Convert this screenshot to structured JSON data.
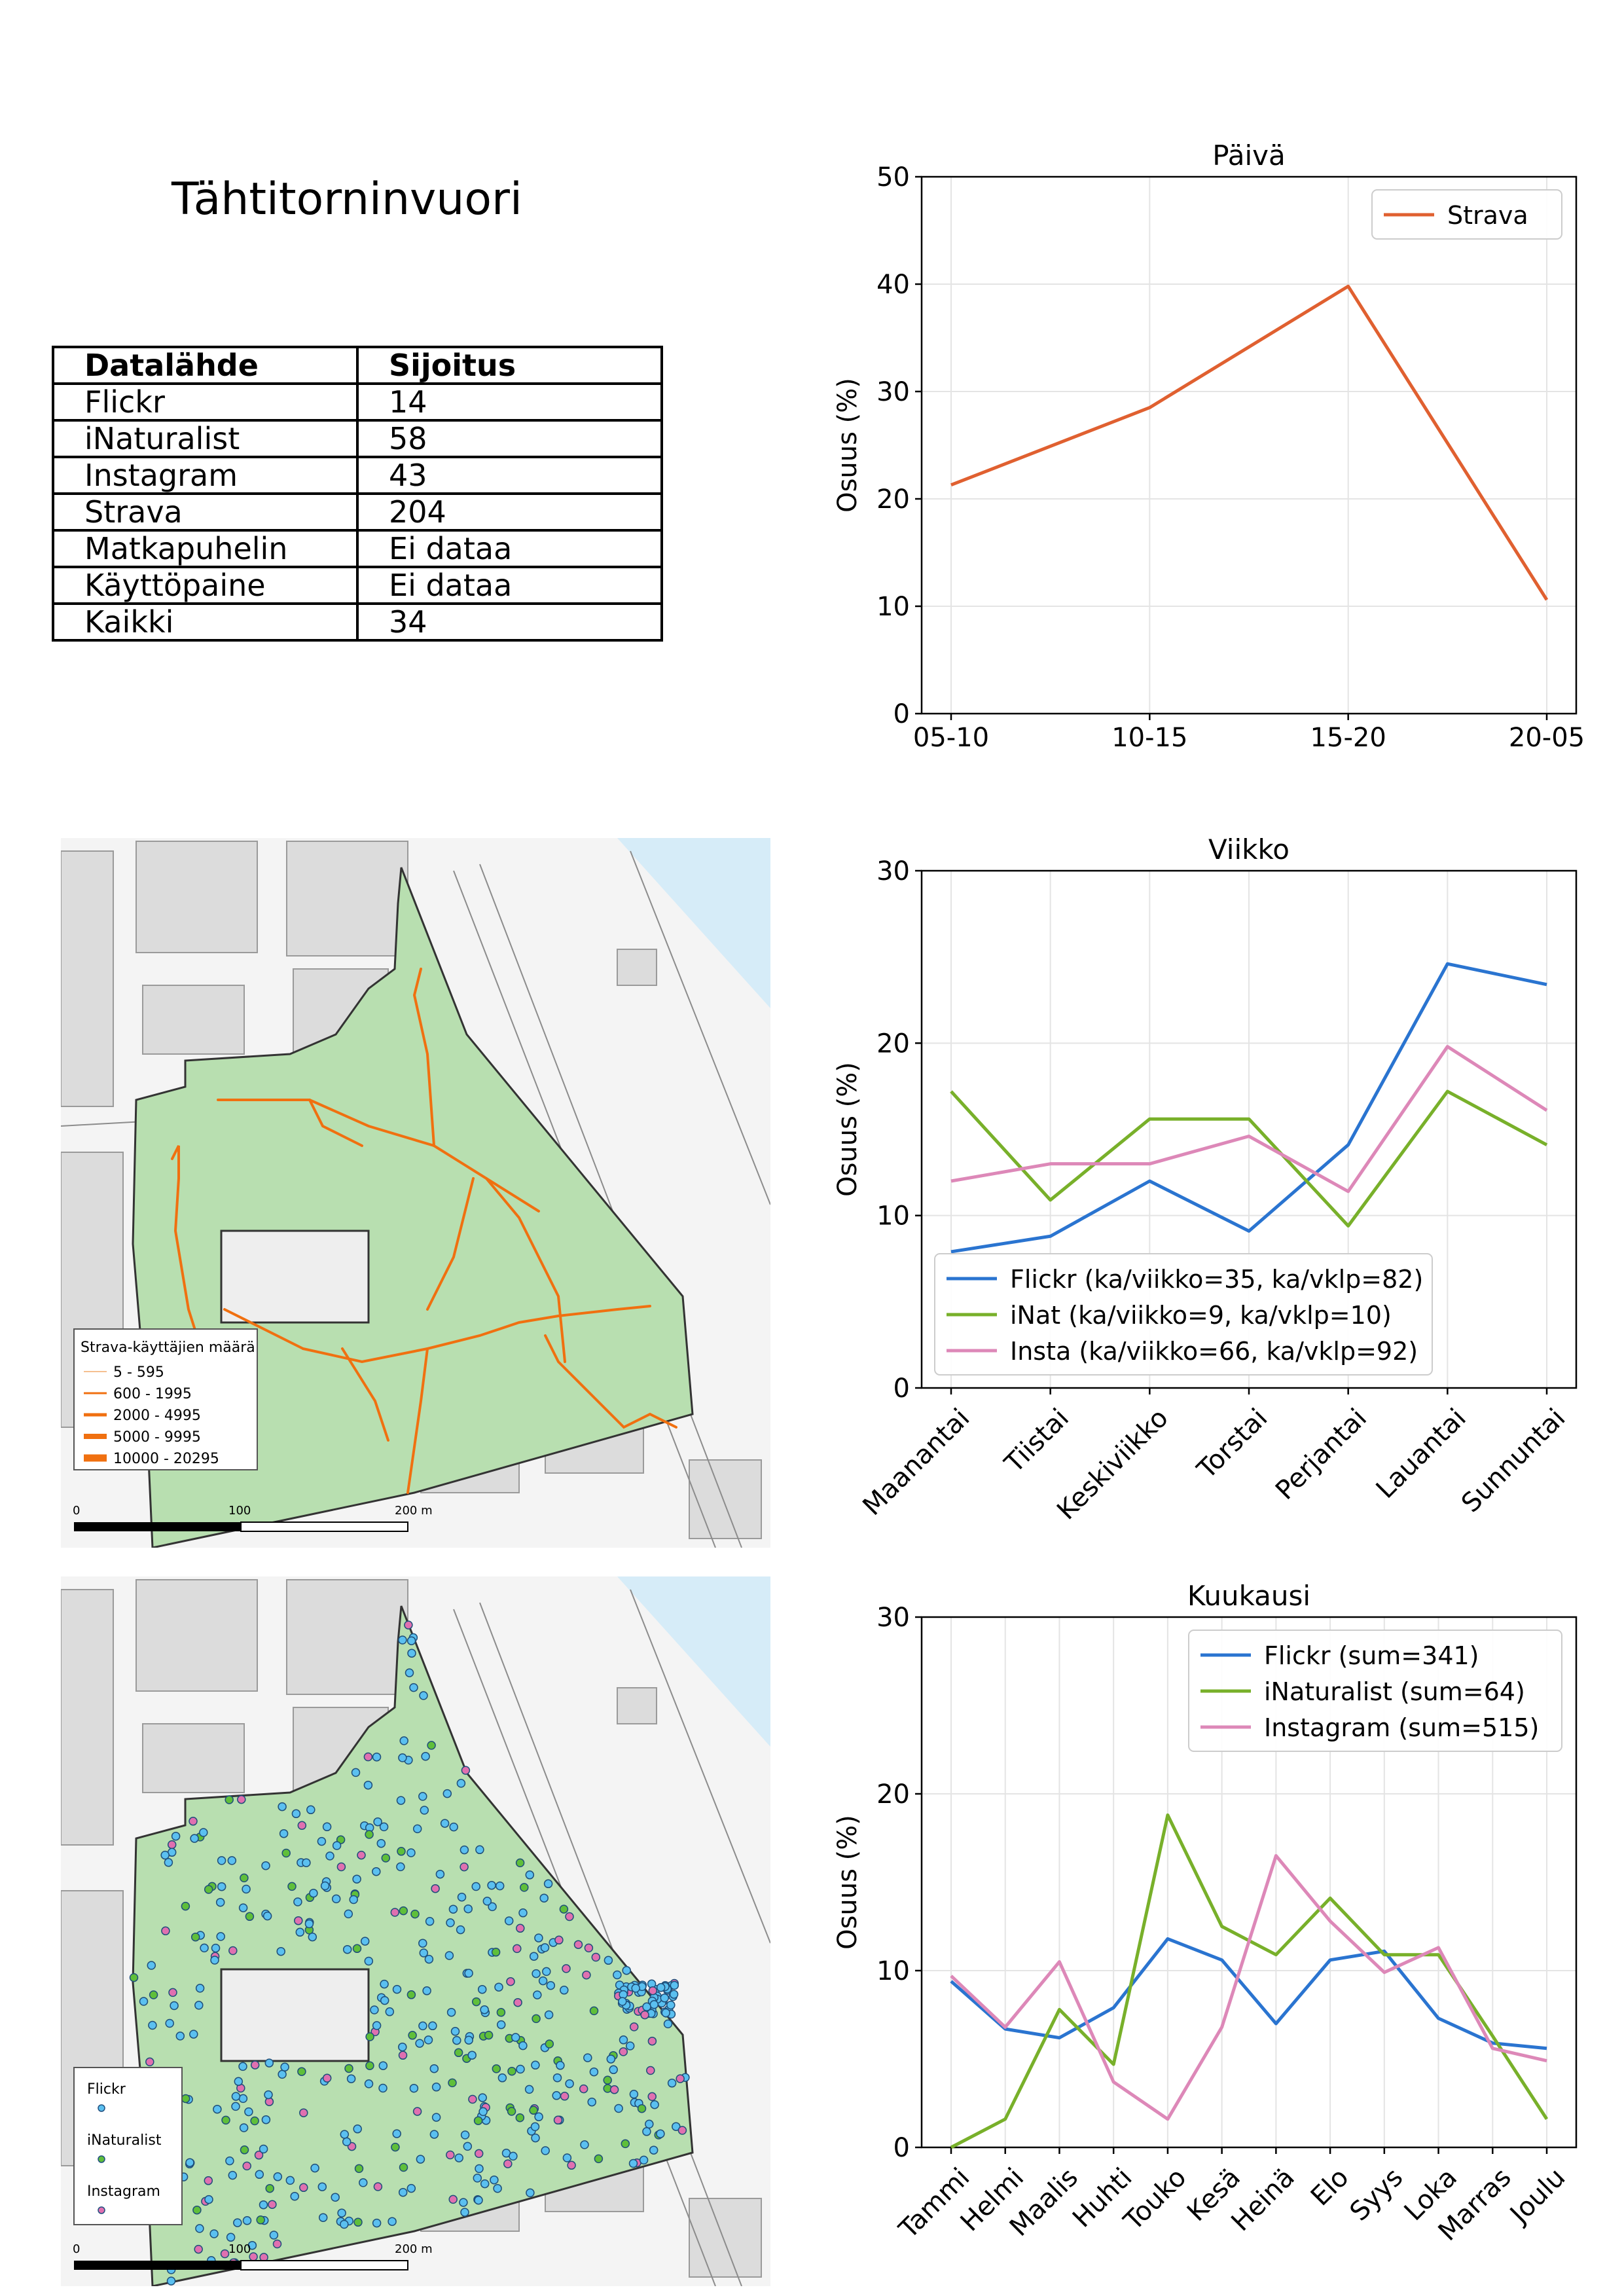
{
  "page": {
    "title": "Tähtitorninvuori"
  },
  "ranking_table": {
    "headers": [
      "Datalähde",
      "Sijoitus"
    ],
    "rows": [
      [
        "Flickr",
        "14"
      ],
      [
        "iNaturalist",
        "58"
      ],
      [
        "Instagram",
        "43"
      ],
      [
        "Strava",
        "204"
      ],
      [
        "Matkapuhelin",
        "Ei dataa"
      ],
      [
        "Käyttöpaine",
        "Ei dataa"
      ],
      [
        "Kaikki",
        "34"
      ]
    ]
  },
  "colors": {
    "strava": "#e06030",
    "flickr": "#2a74d0",
    "inat": "#78b02a",
    "insta": "#dd88b8",
    "park": "#b8dfb0",
    "water": "#d6ecf8",
    "route": "#f07010"
  },
  "chart_data": [
    {
      "id": "paiva",
      "type": "line",
      "title": "Päivä",
      "xlabel": "",
      "ylabel": "Osuus (%)",
      "categories": [
        "05-10",
        "10-15",
        "15-20",
        "20-05"
      ],
      "ylim": [
        0,
        50
      ],
      "yticks": [
        0,
        10,
        20,
        30,
        40,
        50
      ],
      "grid": true,
      "legend": "top-right",
      "series": [
        {
          "name": "Strava",
          "color": "#e06030",
          "values": [
            21.3,
            28.5,
            39.8,
            10.6
          ]
        }
      ]
    },
    {
      "id": "viikko",
      "type": "line",
      "title": "Viikko",
      "xlabel": "",
      "ylabel": "Osuus (%)",
      "categories": [
        "Maanantai",
        "Tiistai",
        "Keskiviikko",
        "Torstai",
        "Perjantai",
        "Lauantai",
        "Sunnuntai"
      ],
      "ylim": [
        0,
        30
      ],
      "yticks": [
        0,
        10,
        20,
        30
      ],
      "grid": true,
      "legend": "lower-left",
      "series": [
        {
          "name": "Flickr (ka/viikko=35, ka/vklp=82)",
          "color": "#2a74d0",
          "values": [
            7.9,
            8.8,
            12.0,
            9.1,
            14.1,
            24.6,
            23.4
          ]
        },
        {
          "name": "iNat (ka/viikko=9, ka/vklp=10)",
          "color": "#78b02a",
          "values": [
            17.2,
            10.9,
            15.6,
            15.6,
            9.4,
            17.2,
            14.1
          ]
        },
        {
          "name": "Insta (ka/viikko=66, ka/vklp=92)",
          "color": "#dd88b8",
          "values": [
            12.0,
            13.0,
            13.0,
            14.6,
            11.4,
            19.8,
            16.1
          ]
        }
      ]
    },
    {
      "id": "kuukausi",
      "type": "line",
      "title": "Kuukausi",
      "xlabel": "",
      "ylabel": "Osuus (%)",
      "categories": [
        "Tammi",
        "Helmi",
        "Maalis",
        "Huhti",
        "Touko",
        "Kesä",
        "Heinä",
        "Elo",
        "Syys",
        "Loka",
        "Marras",
        "Joulu"
      ],
      "ylim": [
        0,
        30
      ],
      "yticks": [
        0,
        10,
        20,
        30
      ],
      "grid": true,
      "legend": "top-right",
      "series": [
        {
          "name": "Flickr (sum=341)",
          "color": "#2a74d0",
          "values": [
            9.4,
            6.7,
            6.2,
            7.9,
            11.8,
            10.6,
            7.0,
            10.6,
            11.1,
            7.3,
            5.9,
            5.6
          ]
        },
        {
          "name": "iNaturalist (sum=64)",
          "color": "#78b02a",
          "values": [
            0.0,
            1.6,
            7.8,
            4.7,
            18.8,
            12.5,
            10.9,
            14.1,
            10.9,
            10.9,
            6.3,
            1.6
          ]
        },
        {
          "name": "Instagram (sum=515)",
          "color": "#dd88b8",
          "values": [
            9.7,
            6.8,
            10.5,
            3.7,
            1.6,
            6.8,
            16.5,
            12.8,
            9.9,
            11.3,
            5.6,
            4.9
          ]
        }
      ]
    }
  ],
  "maps": {
    "strava": {
      "legend_title": "Strava-käyttäjien määrä",
      "legend_items": [
        "5 - 595",
        "600 - 1995",
        "2000 - 4995",
        "5000 - 9995",
        "10000 - 20295"
      ]
    },
    "points": {
      "legend_items": [
        "Flickr",
        "iNaturalist",
        "Instagram"
      ]
    },
    "scale": {
      "label_0": "0",
      "label_100": "100",
      "label_200": "200 m"
    }
  }
}
